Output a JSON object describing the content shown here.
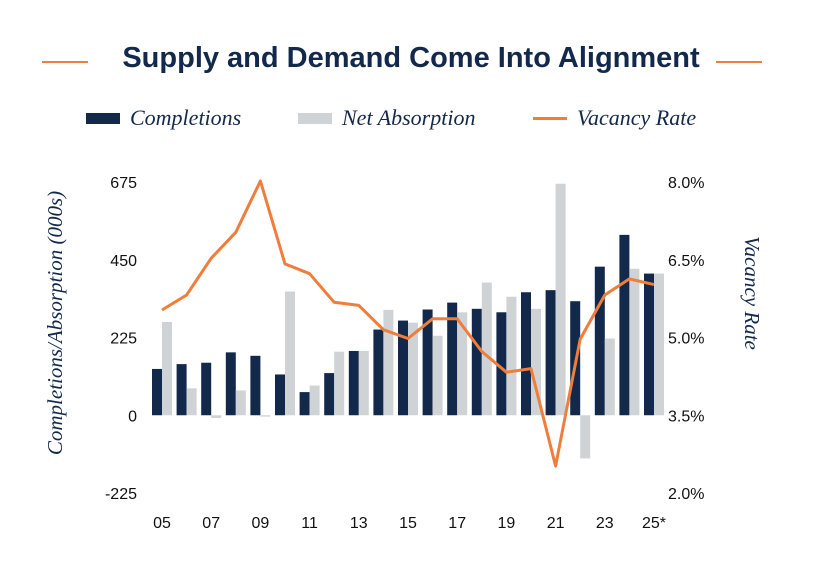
{
  "title": "Supply and Demand Come Into Alignment",
  "colors": {
    "completions": "#13294b",
    "absorption": "#d0d3d6",
    "vacancy": "#ef7d3c"
  },
  "chart_data": {
    "type": "bar",
    "title": "Supply and Demand Come Into Alignment",
    "categories": [
      "05",
      "06",
      "07",
      "08",
      "09",
      "10",
      "11",
      "12",
      "13",
      "14",
      "15",
      "16",
      "17",
      "18",
      "19",
      "20",
      "21",
      "22",
      "23",
      "24",
      "25*"
    ],
    "x_tick_labels": [
      "05",
      "07",
      "09",
      "11",
      "13",
      "15",
      "17",
      "19",
      "21",
      "23",
      "25*"
    ],
    "series": [
      {
        "name": "Completions",
        "type": "bar",
        "axis": "left",
        "values": [
          134,
          148,
          152,
          182,
          172,
          118,
          67,
          122,
          186,
          248,
          274,
          306,
          326,
          308,
          298,
          356,
          362,
          330,
          430,
          522,
          410
        ]
      },
      {
        "name": "Net Absorption",
        "type": "bar",
        "axis": "left",
        "values": [
          270,
          78,
          -8,
          72,
          -4,
          358,
          86,
          184,
          186,
          305,
          268,
          230,
          298,
          384,
          343,
          308,
          670,
          -125,
          222,
          424,
          410
        ]
      },
      {
        "name": "Vacancy Rate",
        "type": "line",
        "axis": "right",
        "values": [
          5.53,
          5.82,
          6.53,
          7.03,
          8.02,
          6.42,
          6.23,
          5.68,
          5.62,
          5.15,
          4.98,
          5.36,
          5.36,
          4.73,
          4.33,
          4.4,
          2.52,
          4.97,
          5.82,
          6.13,
          6.02
        ]
      }
    ],
    "y_left": {
      "label": "Completions/Absorption (000s)",
      "min": -225,
      "max": 675,
      "ticks": [
        "675",
        "450",
        "225",
        "0",
        "-225"
      ],
      "tick_values": [
        675,
        450,
        225,
        0,
        -225
      ]
    },
    "y_right": {
      "label": "Vacancy Rate",
      "min": 2.0,
      "max": 8.0,
      "ticks": [
        "8.0%",
        "6.5%",
        "5.0%",
        "3.5%",
        "2.0%"
      ],
      "tick_values": [
        8.0,
        6.5,
        5.0,
        3.5,
        2.0
      ]
    },
    "legend_position": "top",
    "grid": false
  }
}
